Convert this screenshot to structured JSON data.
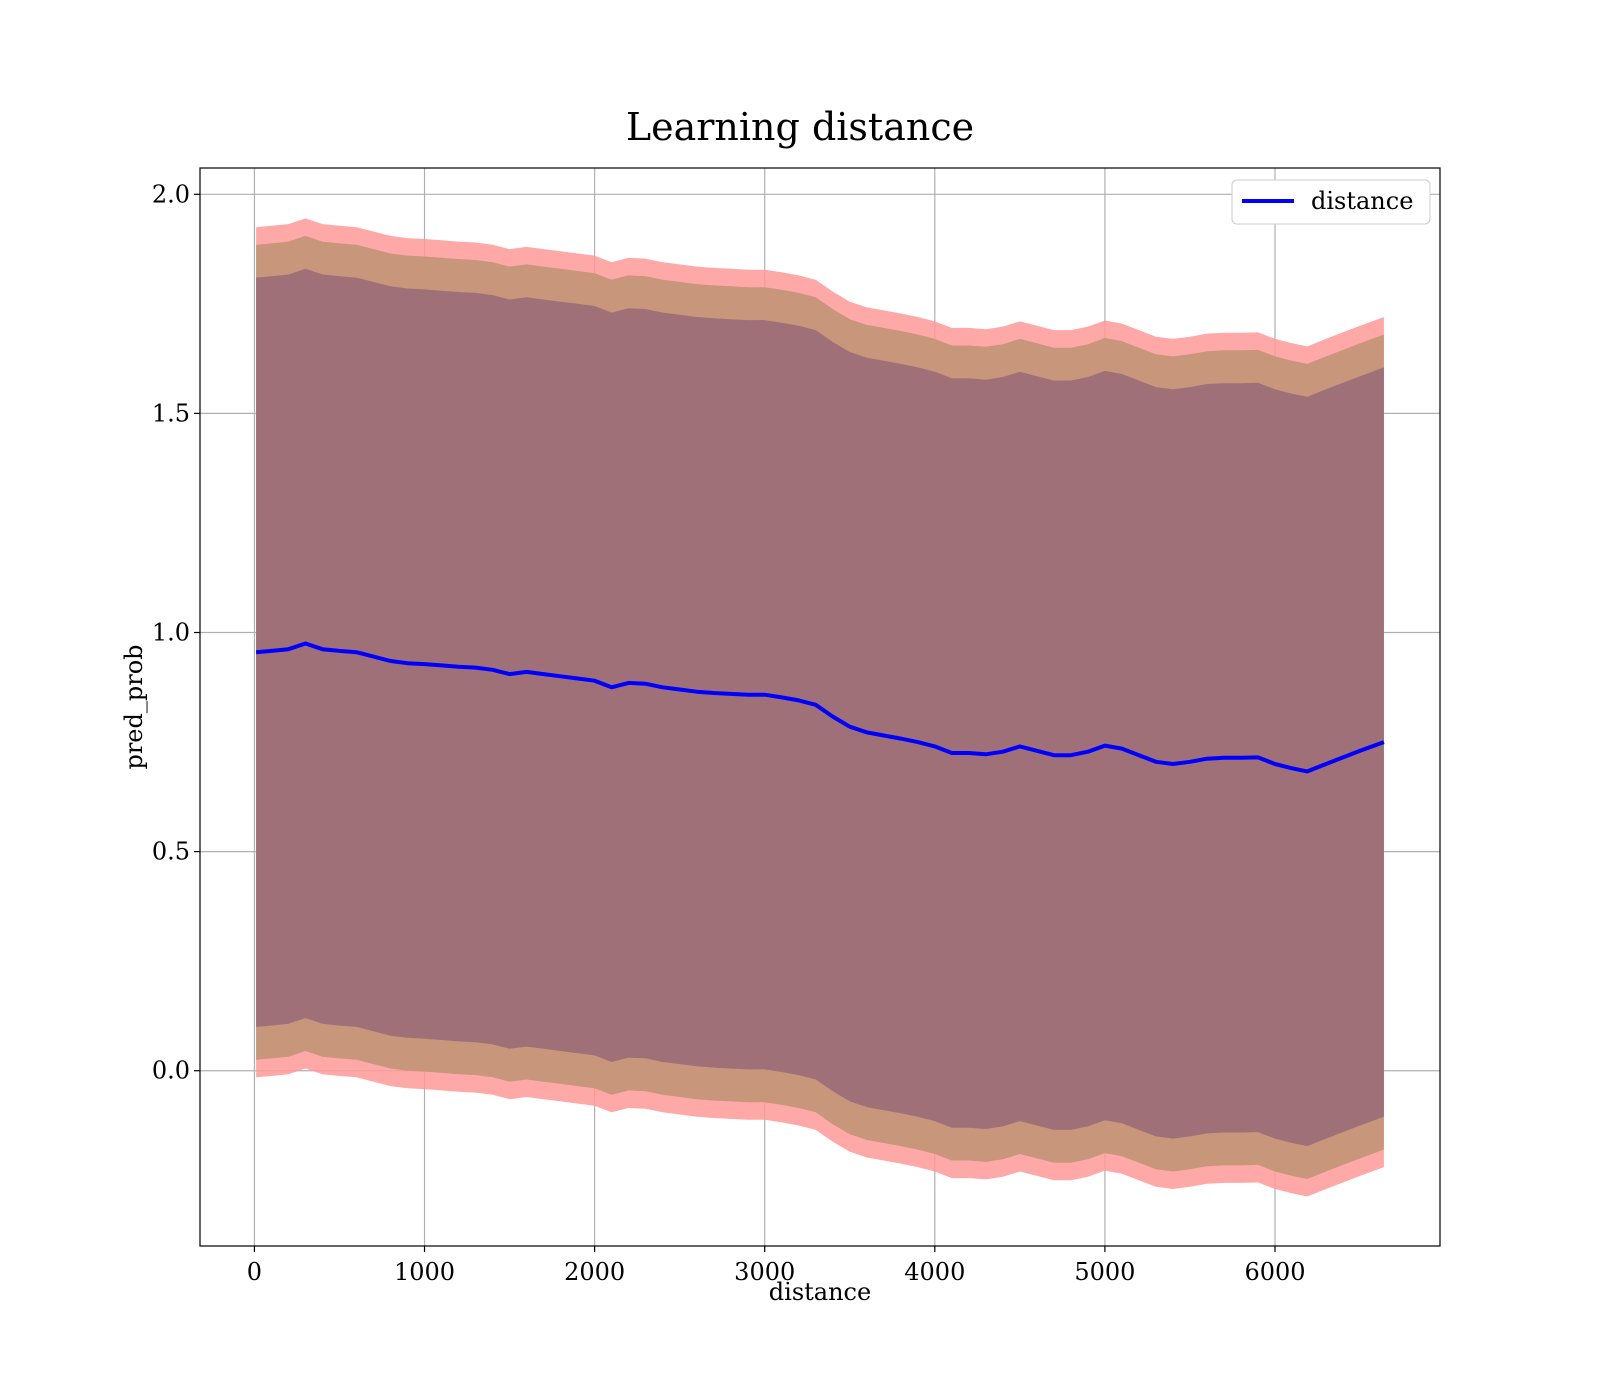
{
  "chart_data": {
    "type": "area",
    "title": "Learning distance",
    "xlabel": "distance",
    "ylabel": "pred_prob",
    "xlim": [
      -320,
      6970
    ],
    "ylim": [
      -0.4,
      2.06
    ],
    "xticks": [
      0,
      1000,
      2000,
      3000,
      4000,
      5000,
      6000
    ],
    "yticks": [
      0.0,
      0.5,
      1.0,
      1.5,
      2.0
    ],
    "grid": true,
    "legend_position": "upper right",
    "colors": {
      "line": "#0000ff",
      "band_outer": "#ff9999",
      "band_middle": "#c8967a",
      "band_inner": "#a07079"
    },
    "x": [
      10,
      100,
      200,
      300,
      400,
      500,
      600,
      700,
      800,
      900,
      1000,
      1100,
      1200,
      1300,
      1400,
      1500,
      1600,
      1700,
      1800,
      1900,
      2000,
      2100,
      2200,
      2300,
      2400,
      2500,
      2600,
      2700,
      2800,
      2900,
      3000,
      3100,
      3200,
      3300,
      3400,
      3500,
      3600,
      3700,
      3800,
      3900,
      4000,
      4100,
      4200,
      4300,
      4400,
      4500,
      4600,
      4700,
      4800,
      4900,
      5000,
      5100,
      5200,
      5300,
      5400,
      5500,
      5600,
      5700,
      5800,
      5900,
      6000,
      6100,
      6190,
      6300,
      6400,
      6500,
      6640
    ],
    "series": [
      {
        "name": "distance",
        "values": [
          0.955,
          0.958,
          0.962,
          0.975,
          0.962,
          0.958,
          0.955,
          0.945,
          0.935,
          0.93,
          0.928,
          0.925,
          0.922,
          0.92,
          0.915,
          0.905,
          0.91,
          0.905,
          0.9,
          0.895,
          0.89,
          0.875,
          0.885,
          0.883,
          0.875,
          0.87,
          0.865,
          0.862,
          0.86,
          0.858,
          0.858,
          0.852,
          0.845,
          0.835,
          0.808,
          0.785,
          0.772,
          0.765,
          0.758,
          0.75,
          0.74,
          0.725,
          0.725,
          0.722,
          0.728,
          0.74,
          0.73,
          0.72,
          0.72,
          0.728,
          0.742,
          0.735,
          0.72,
          0.705,
          0.7,
          0.705,
          0.712,
          0.714,
          0.714,
          0.715,
          0.7,
          0.69,
          0.683,
          0.7,
          0.715,
          0.73,
          0.75
        ]
      }
    ],
    "bands": [
      {
        "offset": 0.97
      },
      {
        "offset": 0.93
      },
      {
        "offset": 0.855
      }
    ]
  }
}
